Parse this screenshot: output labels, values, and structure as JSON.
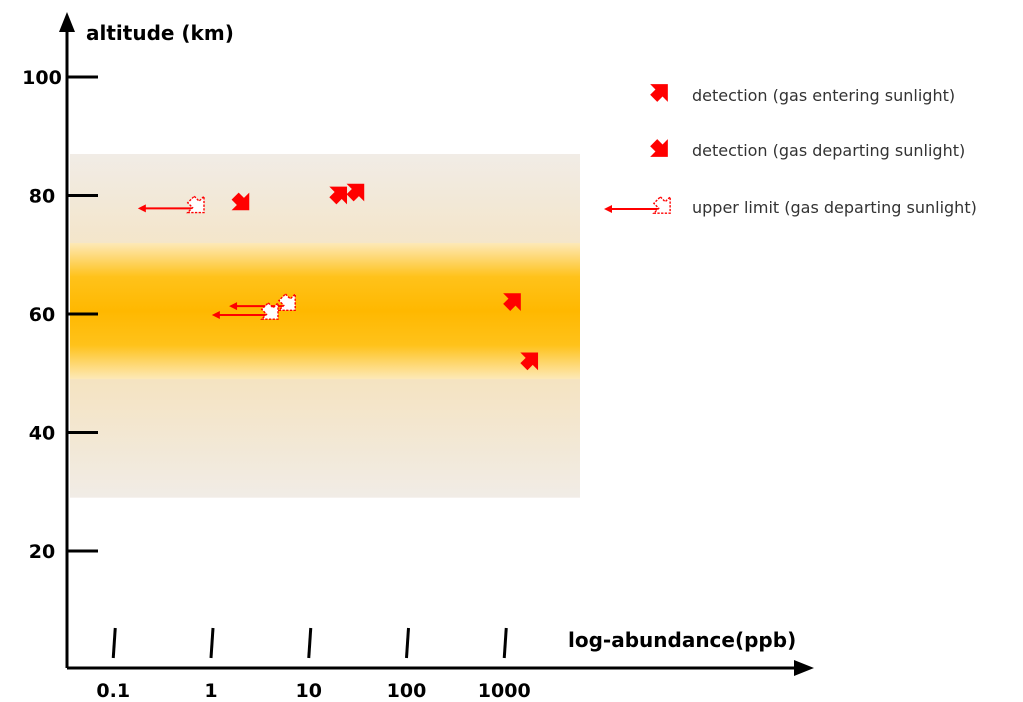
{
  "chart_data": {
    "type": "scatter",
    "xlabel": "log-abundance(ppb)",
    "ylabel": "altitude (km)",
    "xscale": "log",
    "x_ticks": [
      "0.1",
      "1",
      "10",
      "100",
      "1000"
    ],
    "y_ticks": [
      "20",
      "40",
      "60",
      "80",
      "100"
    ],
    "bands": [
      {
        "y_range": [
          29,
          87
        ],
        "color": "#f3e9d8"
      },
      {
        "y_range": [
          49,
          72
        ],
        "color": "#ffb800"
      }
    ],
    "series": [
      {
        "marker": "entering",
        "points": [
          {
            "x": 20,
            "y": 80
          },
          {
            "x": 30,
            "y": 80.5
          },
          {
            "x": 1200,
            "y": 62
          },
          {
            "x": 1800,
            "y": 52
          }
        ]
      },
      {
        "marker": "departing",
        "points": [
          {
            "x": 2,
            "y": 79
          }
        ]
      },
      {
        "marker": "upper-limit",
        "points": [
          {
            "x": 0.7,
            "y": 78.5
          },
          {
            "x": 6,
            "y": 62
          },
          {
            "x": 4,
            "y": 60.5
          }
        ]
      }
    ],
    "legend": [
      {
        "marker": "entering",
        "label": "detection (gas entering sunlight)"
      },
      {
        "marker": "departing",
        "label": "detection (gas departing sunlight)"
      },
      {
        "marker": "upper-limit",
        "label": "upper limit (gas departing sunlight)"
      }
    ],
    "legend_position": "top-right",
    "colors": {
      "marker": "#ff0000",
      "band_outer": "#f3e9d8",
      "band_core": "#ffb800"
    }
  }
}
